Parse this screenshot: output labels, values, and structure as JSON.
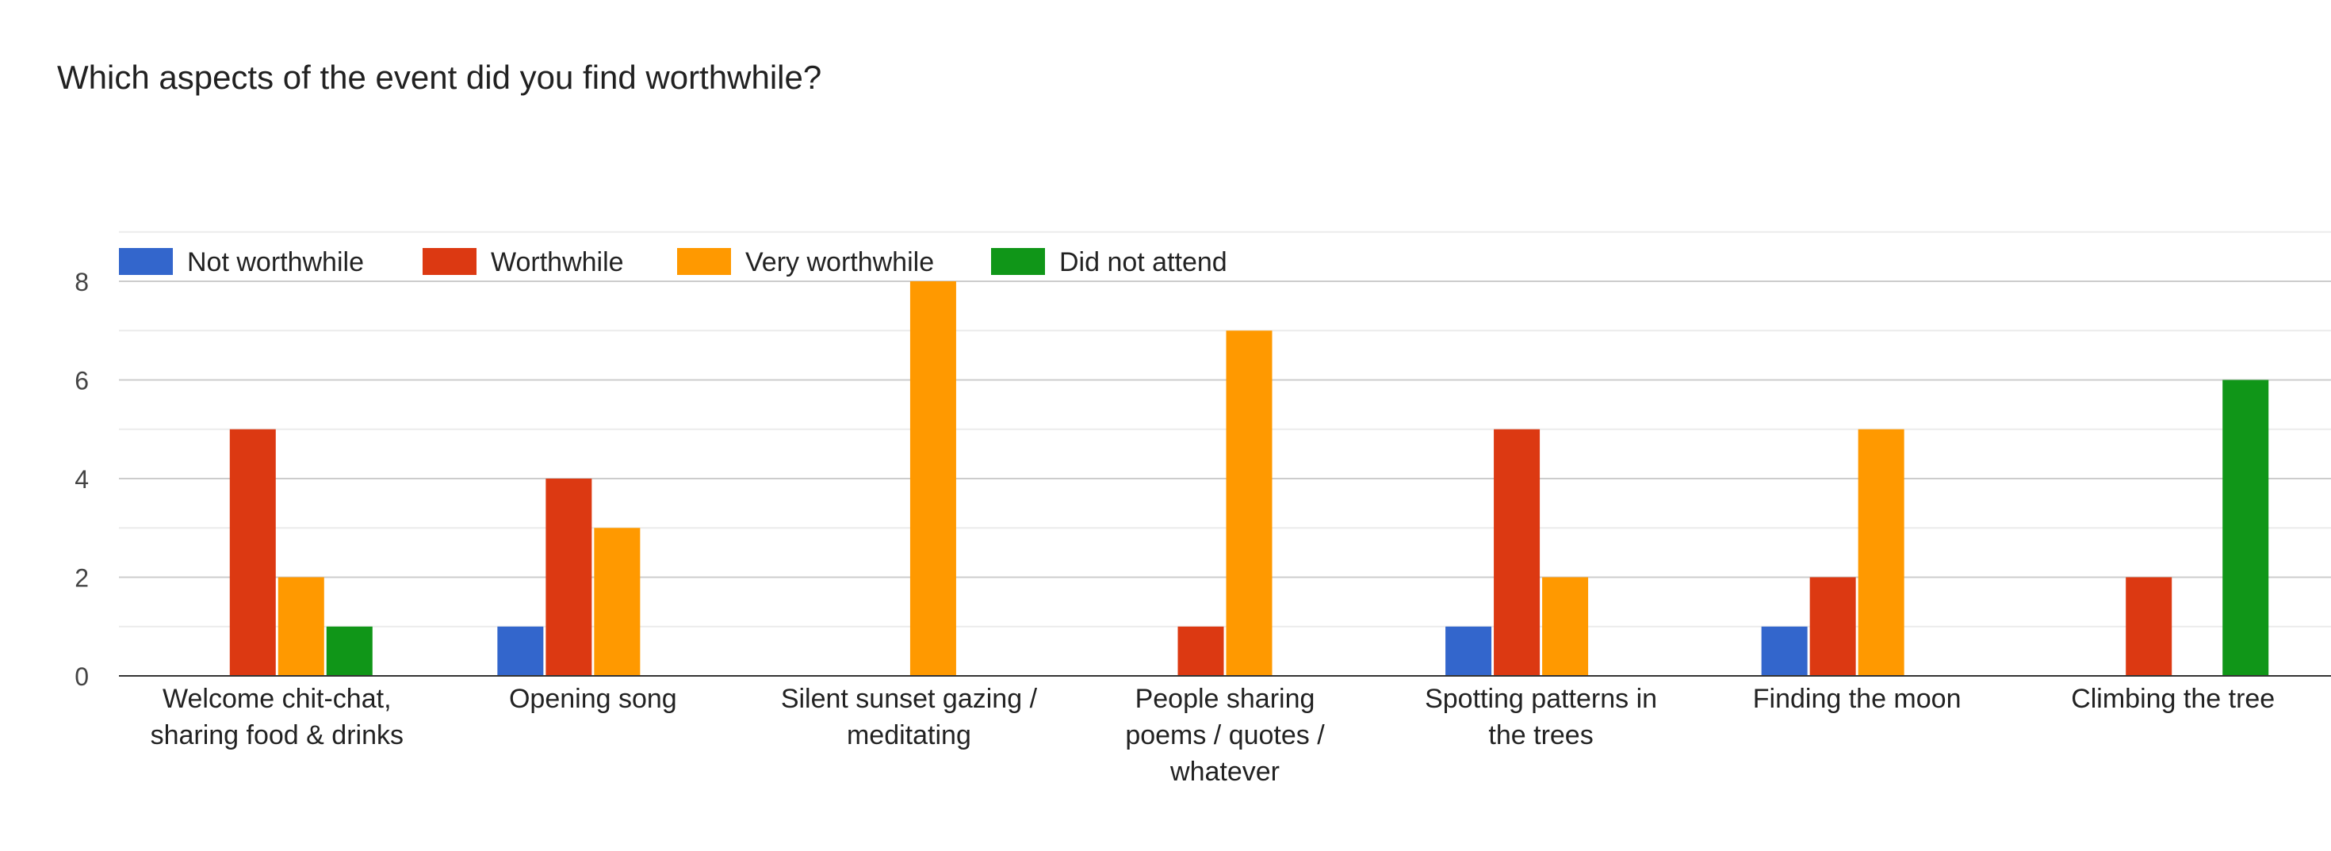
{
  "chart_data": {
    "type": "bar",
    "title": "Which aspects of the event did you find worthwhile?",
    "xlabel": "",
    "ylabel": "",
    "ylim": [
      0,
      8
    ],
    "yticks": [
      0,
      2,
      4,
      6,
      8
    ],
    "grid": true,
    "legend_position": "top-left",
    "categories": [
      [
        "Welcome chit-chat,",
        "sharing food & drinks"
      ],
      [
        "Opening song"
      ],
      [
        "Silent sunset gazing /",
        "meditating"
      ],
      [
        "People sharing",
        "poems / quotes /",
        "whatever"
      ],
      [
        "Spotting patterns in",
        "the trees"
      ],
      [
        "Finding the moon"
      ],
      [
        "Climbing the tree"
      ]
    ],
    "series": [
      {
        "name": "Not worthwhile",
        "color": "#3366cc",
        "values": [
          0,
          1,
          0,
          0,
          1,
          1,
          0
        ]
      },
      {
        "name": "Worthwhile",
        "color": "#dc3912",
        "values": [
          5,
          4,
          0,
          1,
          5,
          2,
          2
        ]
      },
      {
        "name": "Very worthwhile",
        "color": "#ff9900",
        "values": [
          2,
          3,
          8,
          7,
          2,
          5,
          0
        ]
      },
      {
        "name": "Did not attend",
        "color": "#109618",
        "values": [
          1,
          0,
          0,
          0,
          0,
          0,
          6
        ]
      }
    ]
  }
}
